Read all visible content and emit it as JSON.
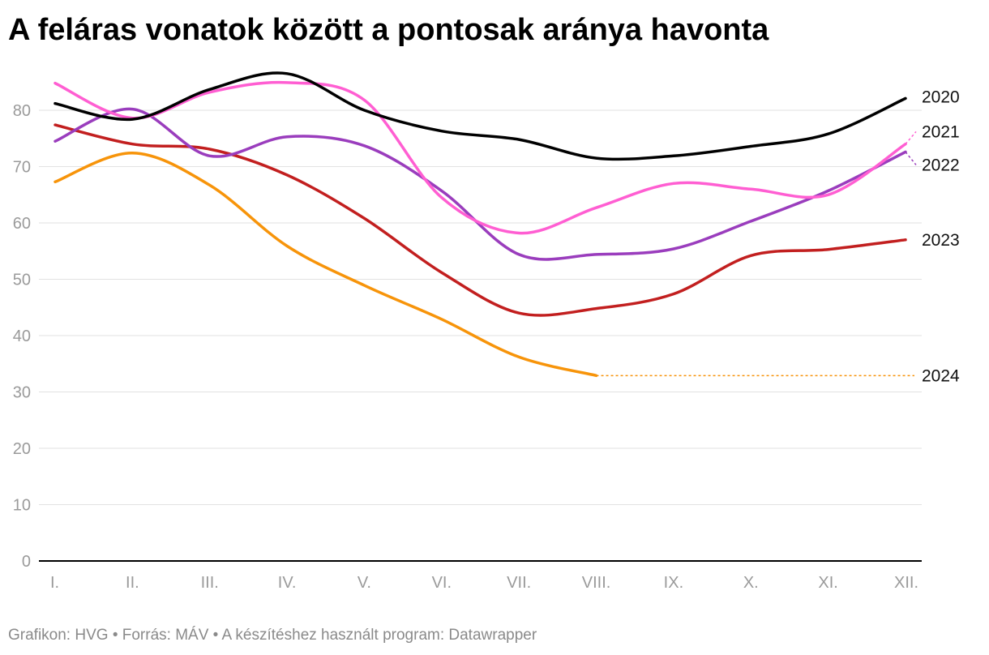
{
  "title": "A feláras vonatok között a pontosak aránya havonta",
  "footer": "Grafikon: HVG • Forrás: MÁV • A készítéshez használt program: Datawrapper",
  "chart_data": {
    "type": "line",
    "title": "A feláras vonatok között a pontosak aránya havonta",
    "xlabel": "",
    "ylabel": "",
    "categories": [
      "I.",
      "II.",
      "III.",
      "IV.",
      "V.",
      "VI.",
      "VII.",
      "VIII.",
      "IX.",
      "X.",
      "XI.",
      "XII."
    ],
    "yticks": [
      0,
      10,
      20,
      30,
      40,
      50,
      60,
      70,
      80
    ],
    "ylim": [
      0,
      88
    ],
    "grid": true,
    "legend": "direct labels at line ends (right)",
    "series": [
      {
        "name": "2020",
        "color": "#000000",
        "values": [
          81.2,
          78.4,
          83.7,
          86.5,
          80.0,
          76.3,
          74.8,
          71.5,
          71.9,
          73.6,
          75.8,
          82.1
        ]
      },
      {
        "name": "2021",
        "color": "#ff5ed2",
        "values": [
          84.8,
          78.6,
          83.2,
          84.9,
          81.8,
          64.5,
          58.2,
          62.7,
          67.0,
          66.0,
          65.0,
          74.0
        ],
        "projected_end": 76.2
      },
      {
        "name": "2022",
        "color": "#9a3dbd",
        "values": [
          74.5,
          80.2,
          71.9,
          75.3,
          73.7,
          65.7,
          54.4,
          54.4,
          55.4,
          60.3,
          65.7,
          72.6
        ],
        "projected_end": 70.3
      },
      {
        "name": "2023",
        "color": "#c21f1f",
        "values": [
          77.4,
          74.0,
          73.1,
          68.5,
          60.8,
          51.2,
          44.0,
          44.8,
          47.4,
          54.2,
          55.3,
          57.0
        ]
      },
      {
        "name": "2024",
        "color": "#f7940a",
        "values": [
          67.3,
          72.4,
          66.7,
          55.9,
          48.9,
          42.9,
          36.2,
          32.9,
          null,
          null,
          null,
          null
        ],
        "projected_end": 32.9
      }
    ]
  }
}
